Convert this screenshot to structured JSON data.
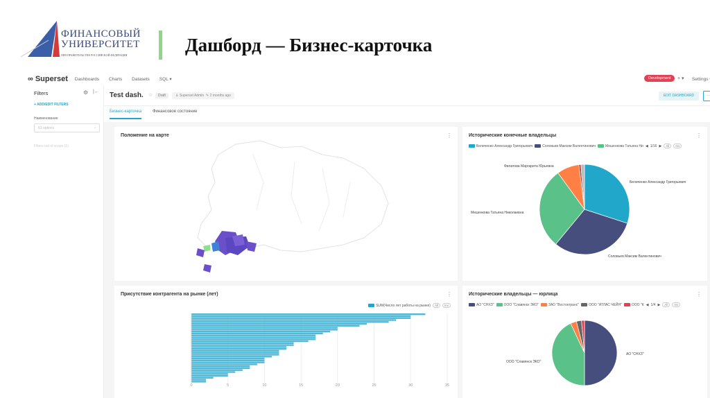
{
  "slide": {
    "title": "Дашборд — Бизнес-карточка",
    "logo": {
      "line1": "ФИНАНСОВЫЙ",
      "line2": "УНИВЕРСИТЕТ",
      "line3": "ПРИ ПРАВИТЕЛЬСТВЕ РОССИЙСКОЙ ФЕДЕРАЦИИ"
    }
  },
  "nav": {
    "brand": "Superset",
    "items": [
      "Dashboards",
      "Charts",
      "Datasets",
      "SQL ▾"
    ],
    "env_badge": "Development",
    "plus": "+ ▾",
    "settings": "Settings ▾"
  },
  "sidebar": {
    "title": "Filters",
    "add_filters": "+ ADD/EDIT FILTERS",
    "filter_label": "Наименование",
    "filter_placeholder": "53 options",
    "out_of_scope": "Filters out of scope (1)"
  },
  "header": {
    "title": "Test dash.",
    "status": "Draft",
    "owner": "Superset Admin",
    "modified": "2 months ago",
    "edit_button": "EDIT DASHBOARD",
    "more": "···"
  },
  "tabs": [
    {
      "label": "Бизнес-карточка",
      "active": true
    },
    {
      "label": "Финансовое состояние",
      "active": false
    }
  ],
  "colors": {
    "blue": "#20a7c9",
    "navy": "#454e7c",
    "green": "#5ac189",
    "orange": "#ff7f44",
    "gray": "#666666",
    "red": "#e04355",
    "purple": "#6a4fc9",
    "accent": "#20a7c9"
  },
  "map_card": {
    "title": "Положение на карте"
  },
  "chart_data": [
    {
      "type": "pie",
      "title": "Исторические конечные владельцы",
      "legend_page": "1/16",
      "legend": [
        "Беличенко Александр Григорьевич",
        "Соловьев Максим Валентинович",
        "Мешенкова Татьяна Ни"
      ],
      "slices": [
        {
          "label": "Беличенко Александр Григорьевич",
          "value": 30,
          "color": "#20a7c9"
        },
        {
          "label": "Соловьев Максим Валентинович",
          "value": 31,
          "color": "#454e7c"
        },
        {
          "label": "Мешенкова Татьяна Николаевна",
          "value": 29,
          "color": "#5ac189"
        },
        {
          "label": "Филатова Маргарита Юрьевна",
          "value": 8,
          "color": "#ff7f44"
        },
        {
          "label": "",
          "value": 0.7,
          "color": "#a0413c"
        },
        {
          "label": "",
          "value": 1.3,
          "color": "#bbbbbb"
        }
      ]
    },
    {
      "type": "bar",
      "orientation": "horizontal",
      "title": "Присутствие контрагента на рынке (лет)",
      "legend": [
        "SUM(Число лет работы на рынке)"
      ],
      "xlim": [
        0,
        35
      ],
      "ticks": [
        "0",
        "5",
        "10",
        "15",
        "20",
        "25",
        "30",
        "35"
      ],
      "values": [
        32,
        30,
        30,
        28,
        27,
        24,
        23,
        20,
        20,
        19,
        18,
        17,
        17,
        17,
        16,
        14,
        14,
        13,
        13,
        12,
        12,
        12,
        11,
        10,
        10,
        10,
        9,
        8,
        8,
        7,
        6,
        5,
        5,
        3,
        2,
        2
      ]
    },
    {
      "type": "pie",
      "title": "Исторические владельцы — юрлица",
      "legend_page": "1/4",
      "legend": [
        "АО \"СНХЗ\"",
        "ООО \"Славянск ЭКО\"",
        "ЗАО \"Востоктранс\"",
        "ООО \"АТЛАС ЧЕЙН\"",
        "ООО \"К"
      ],
      "slices": [
        {
          "label": "АО \"СНХЗ\"",
          "value": 50,
          "color": "#454e7c"
        },
        {
          "label": "ООО \"Славянск ЭКО\"",
          "value": 43,
          "color": "#5ac189"
        },
        {
          "label": "",
          "value": 3,
          "color": "#ff7f44"
        },
        {
          "label": "",
          "value": 2.5,
          "color": "#666666"
        },
        {
          "label": "",
          "value": 1.5,
          "color": "#e04355"
        }
      ]
    }
  ],
  "legend_controls": {
    "prev": "◀",
    "next": "▶",
    "all": "All",
    "inv": "Inv"
  }
}
